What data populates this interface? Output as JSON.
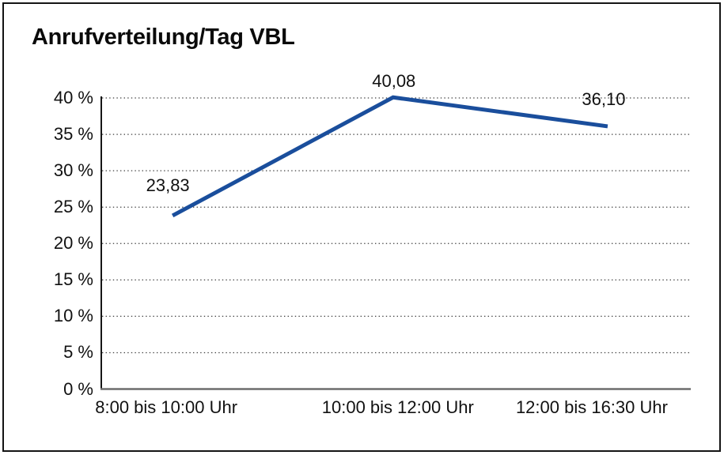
{
  "page": {
    "background": "#ffffff",
    "frame_border_color": "#141414"
  },
  "chart": {
    "title": "Anrufverteilung/Tag VBL"
  },
  "chart_data": {
    "type": "line",
    "title": "Anrufverteilung/Tag VBL",
    "categories": [
      "8:00 bis 10:00 Uhr",
      "10:00 bis 12:00 Uhr",
      "12:00 bis 16:30 Uhr"
    ],
    "values": [
      23.83,
      40.08,
      36.1
    ],
    "value_labels": [
      "23,83",
      "40,08",
      "36,10"
    ],
    "xlabel": "",
    "ylabel": "",
    "ylim": [
      0,
      40
    ],
    "ytick_step": 5,
    "ytick_labels": [
      "0 %",
      "5 %",
      "10 %",
      "15 %",
      "20 %",
      "25 %",
      "30 %",
      "35 %",
      "40 %"
    ],
    "grid": "horizontal-dotted",
    "legend": "none",
    "colors": {
      "series_line": "#1a4e9c",
      "gridline": "#3f3f3f",
      "y_axis": "#161616",
      "x_axis": "#6d6d6d",
      "text": "#111111"
    }
  }
}
